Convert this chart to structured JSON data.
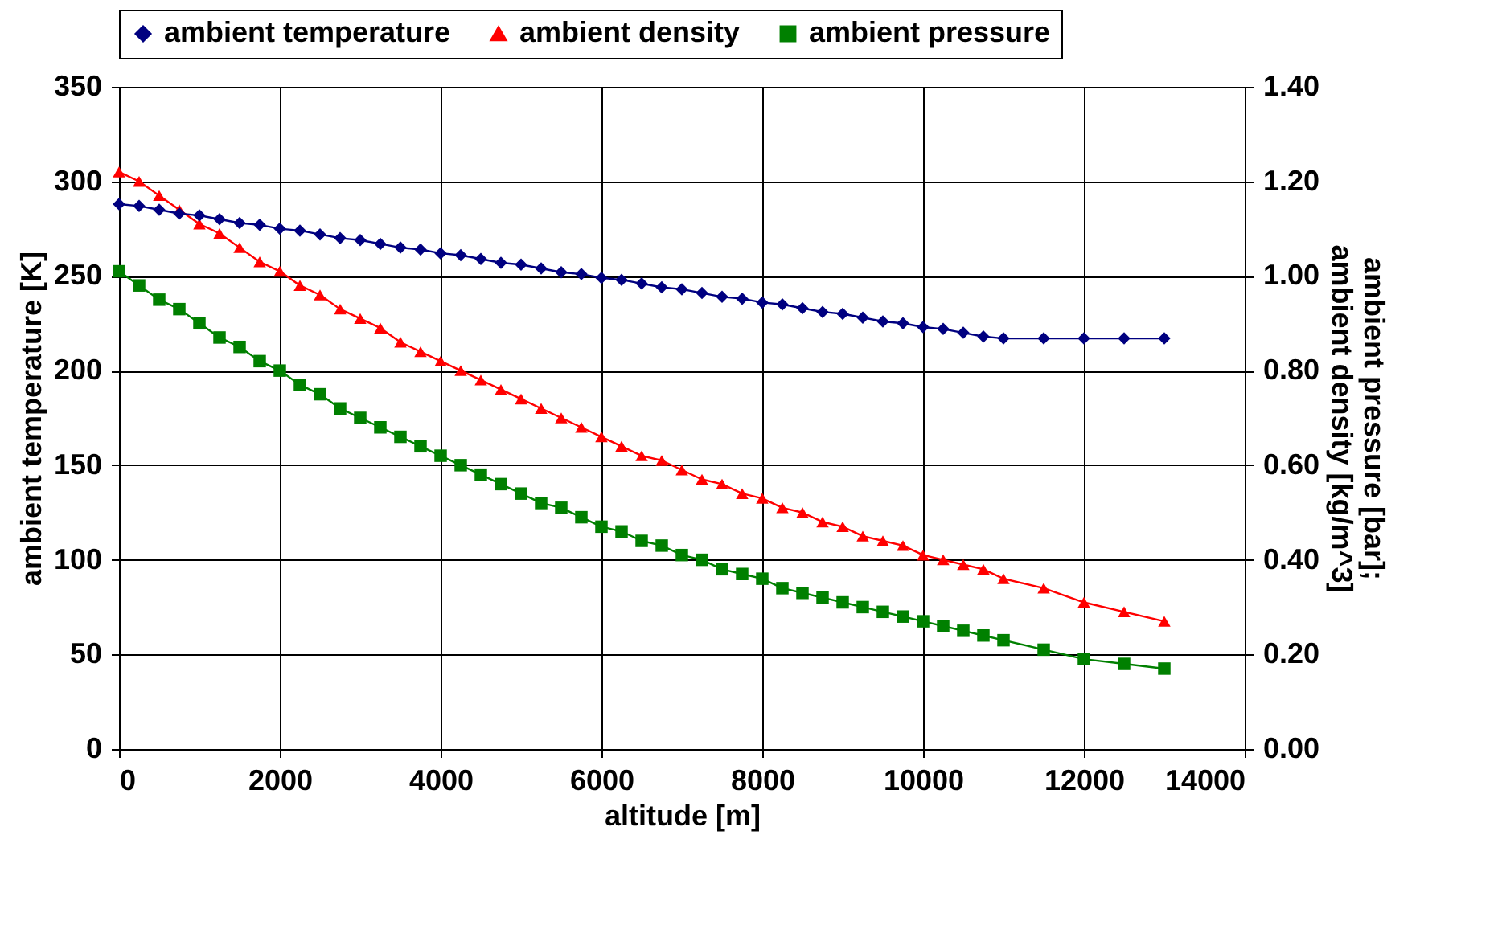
{
  "chart_data": {
    "type": "line",
    "xlabel": "altitude [m]",
    "ylabel": "ambient temperature [K]",
    "y2label": "ambient pressure [bar]; ambient density [kg/m^3]",
    "x": [
      0,
      250,
      500,
      750,
      1000,
      1250,
      1500,
      1750,
      2000,
      2250,
      2500,
      2750,
      3000,
      3250,
      3500,
      3750,
      4000,
      4250,
      4500,
      4750,
      5000,
      5250,
      5500,
      5750,
      6000,
      6250,
      6500,
      6750,
      7000,
      7250,
      7500,
      7750,
      8000,
      8250,
      8500,
      8750,
      9000,
      9250,
      9500,
      9750,
      10000,
      10250,
      10500,
      10750,
      11000,
      11500,
      12000,
      12500,
      13000
    ],
    "series": [
      {
        "name": "ambient temperature",
        "color": "#000080",
        "marker": "diamond",
        "values": [
          288,
          287,
          285,
          283,
          282,
          280,
          278,
          277,
          275,
          274,
          272,
          270,
          269,
          267,
          265,
          264,
          262,
          261,
          259,
          257,
          256,
          254,
          252,
          251,
          249,
          248,
          246,
          244,
          243,
          241,
          239,
          238,
          236,
          235,
          233,
          231,
          230,
          228,
          226,
          225,
          223,
          222,
          220,
          218,
          217,
          217,
          217,
          217,
          217
        ]
      },
      {
        "name": "ambient density",
        "color": "#ff0000",
        "marker": "triangle",
        "axis": "y2",
        "values": [
          1.22,
          1.2,
          1.17,
          1.14,
          1.11,
          1.09,
          1.06,
          1.03,
          1.01,
          0.98,
          0.96,
          0.93,
          0.91,
          0.89,
          0.86,
          0.84,
          0.82,
          0.8,
          0.78,
          0.76,
          0.74,
          0.72,
          0.7,
          0.68,
          0.66,
          0.64,
          0.62,
          0.61,
          0.59,
          0.57,
          0.56,
          0.54,
          0.53,
          0.51,
          0.5,
          0.48,
          0.47,
          0.45,
          0.44,
          0.43,
          0.41,
          0.4,
          0.39,
          0.38,
          0.36,
          0.34,
          0.31,
          0.29,
          0.27
        ]
      },
      {
        "name": "ambient pressure",
        "color": "#008000",
        "marker": "square",
        "axis": "y2",
        "values": [
          1.01,
          0.98,
          0.95,
          0.93,
          0.9,
          0.87,
          0.85,
          0.82,
          0.8,
          0.77,
          0.75,
          0.72,
          0.7,
          0.68,
          0.66,
          0.64,
          0.62,
          0.6,
          0.58,
          0.56,
          0.54,
          0.52,
          0.51,
          0.49,
          0.47,
          0.46,
          0.44,
          0.43,
          0.41,
          0.4,
          0.38,
          0.37,
          0.36,
          0.34,
          0.33,
          0.32,
          0.31,
          0.3,
          0.29,
          0.28,
          0.27,
          0.26,
          0.25,
          0.24,
          0.23,
          0.21,
          0.19,
          0.18,
          0.17
        ]
      }
    ],
    "xlim": [
      0,
      14000
    ],
    "xticks": [
      0,
      2000,
      4000,
      6000,
      8000,
      10000,
      12000,
      14000
    ],
    "ylim": [
      0,
      350
    ],
    "yticks": [
      0,
      50,
      100,
      150,
      200,
      250,
      300,
      350
    ],
    "y2lim": [
      0,
      1.4
    ],
    "y2ticks": [
      {
        "value": 0,
        "label": "0.00"
      },
      {
        "value": 0.2,
        "label": "0.20"
      },
      {
        "value": 0.4,
        "label": "0.40"
      },
      {
        "value": 0.6,
        "label": "0.60"
      },
      {
        "value": 0.8,
        "label": "0.80"
      },
      {
        "value": 1,
        "label": "1.00"
      },
      {
        "value": 1.2,
        "label": "1.20"
      },
      {
        "value": 1.4,
        "label": "1.40"
      }
    ],
    "grid": true,
    "legend": "top",
    "line_style": "solid"
  }
}
